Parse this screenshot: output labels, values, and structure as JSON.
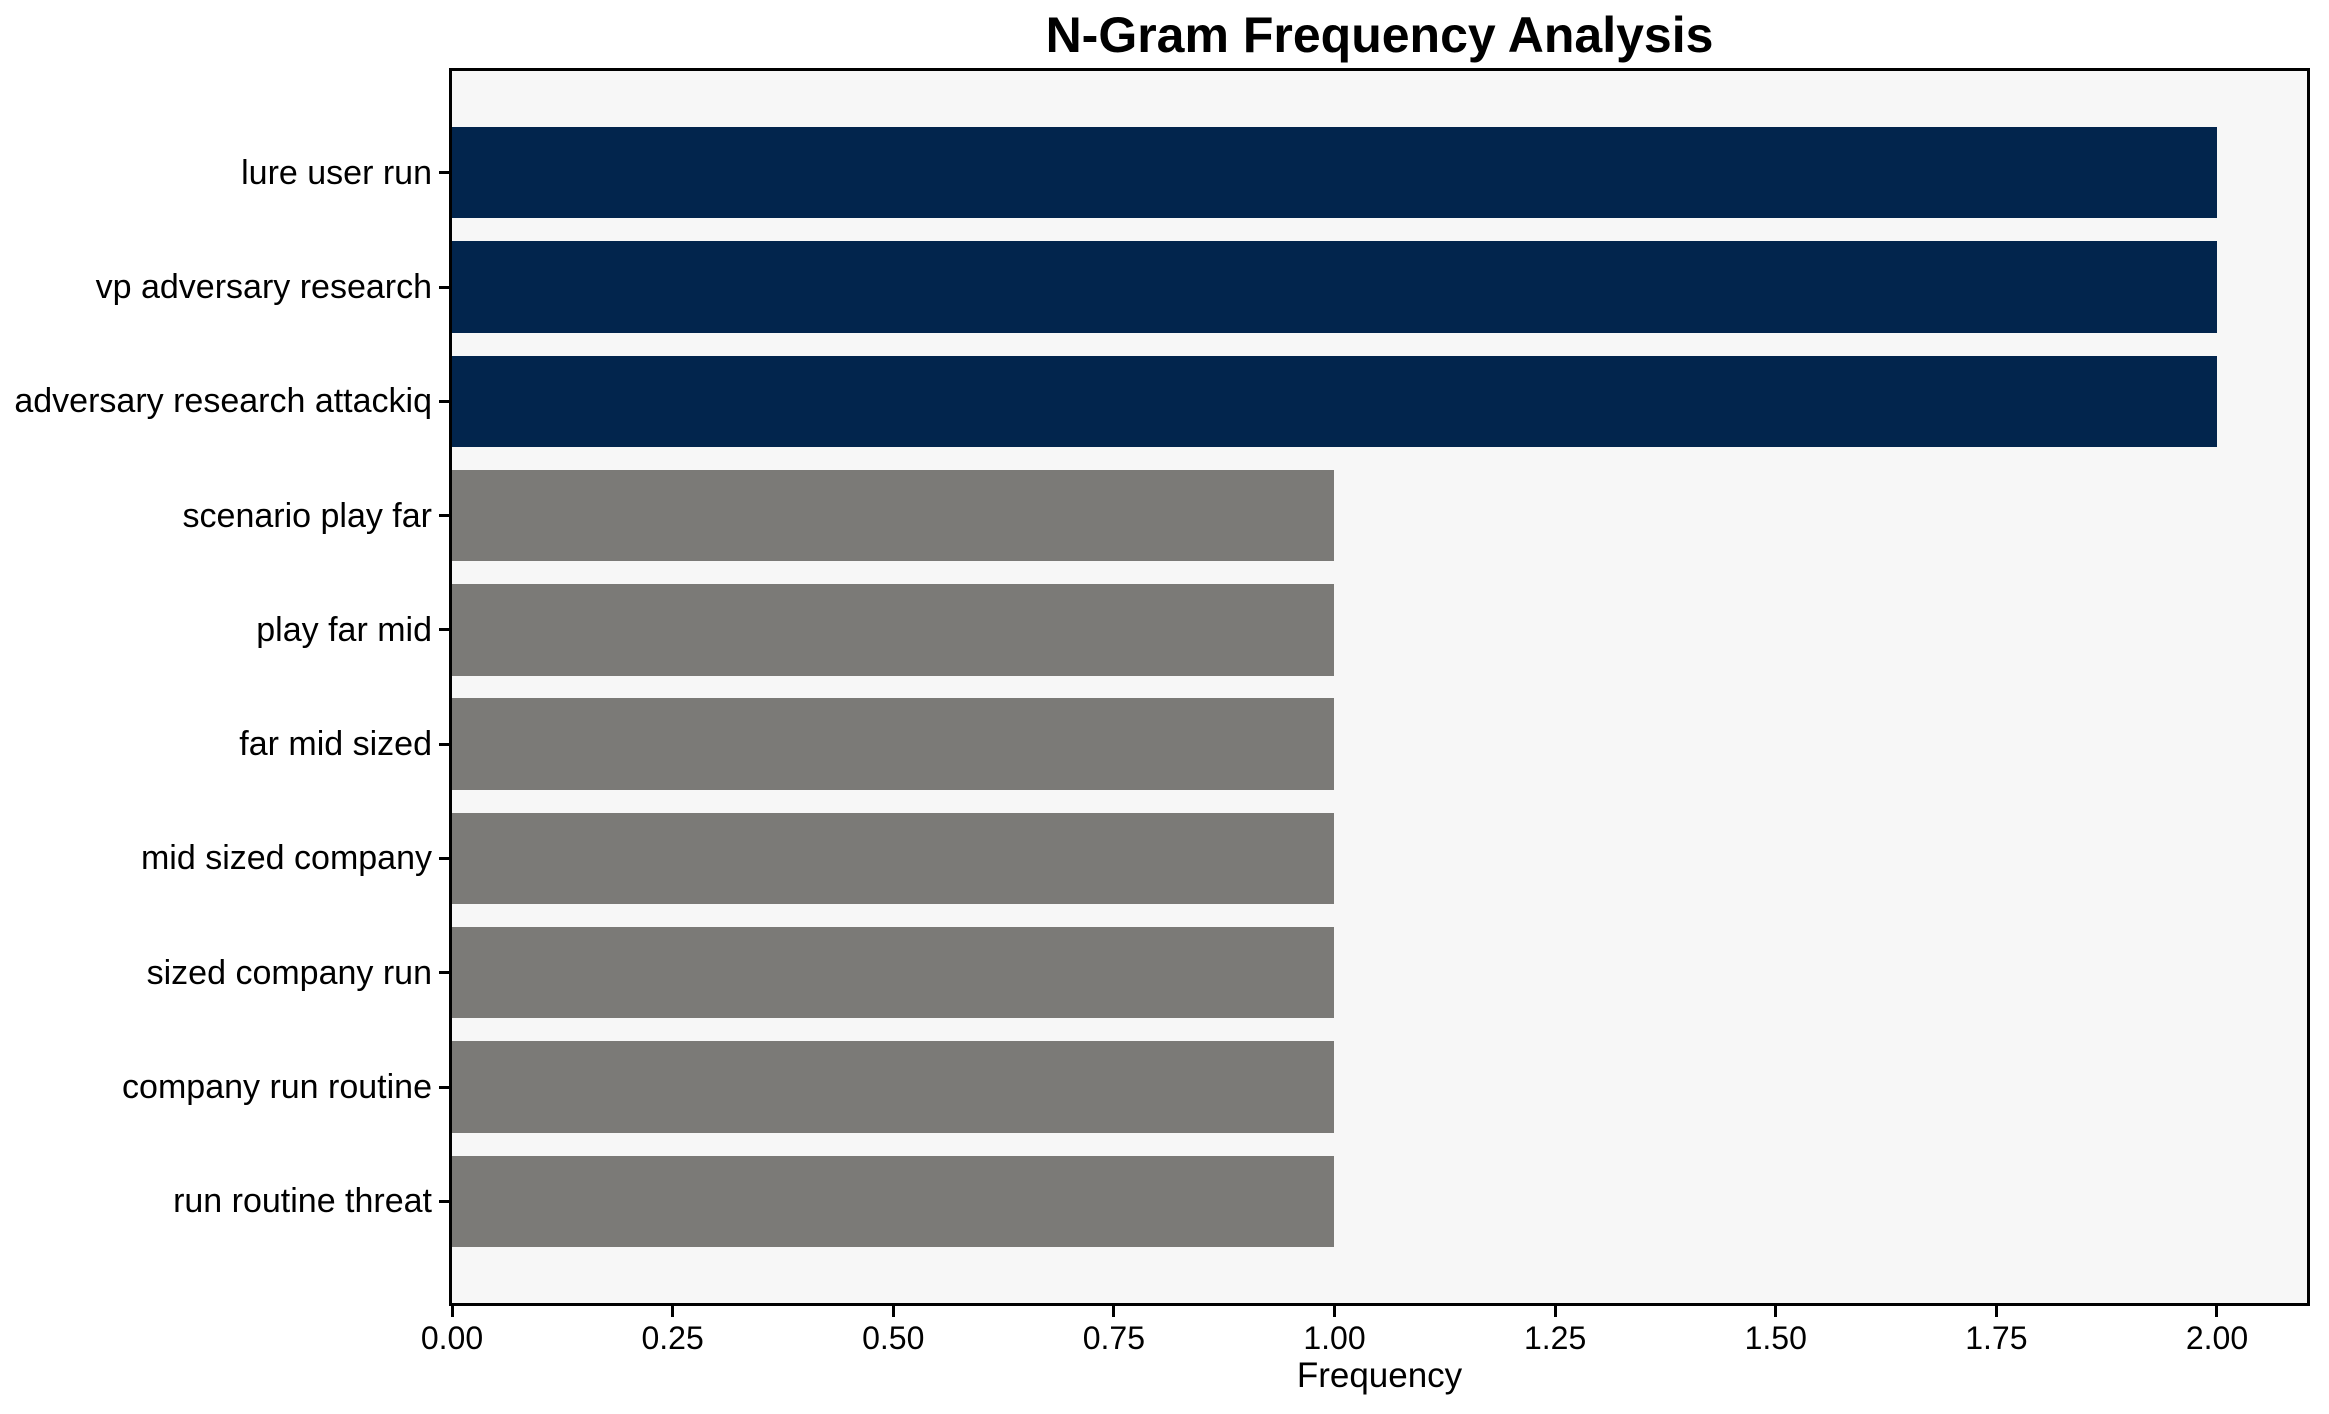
{
  "chart_data": {
    "type": "bar",
    "orientation": "horizontal",
    "title": "N-Gram Frequency Analysis",
    "xlabel": "Frequency",
    "ylabel": "",
    "categories": [
      "lure user run",
      "vp adversary research",
      "adversary research attackiq",
      "scenario play far",
      "play far mid",
      "far mid sized",
      "mid sized company",
      "sized company run",
      "company run routine",
      "run routine threat"
    ],
    "values": [
      2,
      2,
      2,
      1,
      1,
      1,
      1,
      1,
      1,
      1
    ],
    "bar_colors": [
      "#02254d",
      "#02254d",
      "#02254d",
      "#7b7a77",
      "#7b7a77",
      "#7b7a77",
      "#7b7a77",
      "#7b7a77",
      "#7b7a77",
      "#7b7a77"
    ],
    "xticks": {
      "values": [
        0,
        0.25,
        0.5,
        0.75,
        1.0,
        1.25,
        1.5,
        1.75,
        2.0
      ],
      "labels": [
        "0.00",
        "0.25",
        "0.50",
        "0.75",
        "1.00",
        "1.25",
        "1.50",
        "1.75",
        "2.00"
      ]
    },
    "xlim": [
      0,
      2.102
    ],
    "grid": false,
    "legend": null,
    "colors": {
      "highlight": "#02254d",
      "default": "#7b7a77",
      "plot_background": "#f7f7f7",
      "figure_background": "#ffffff",
      "spine": "#000000",
      "text": "#000000"
    }
  }
}
